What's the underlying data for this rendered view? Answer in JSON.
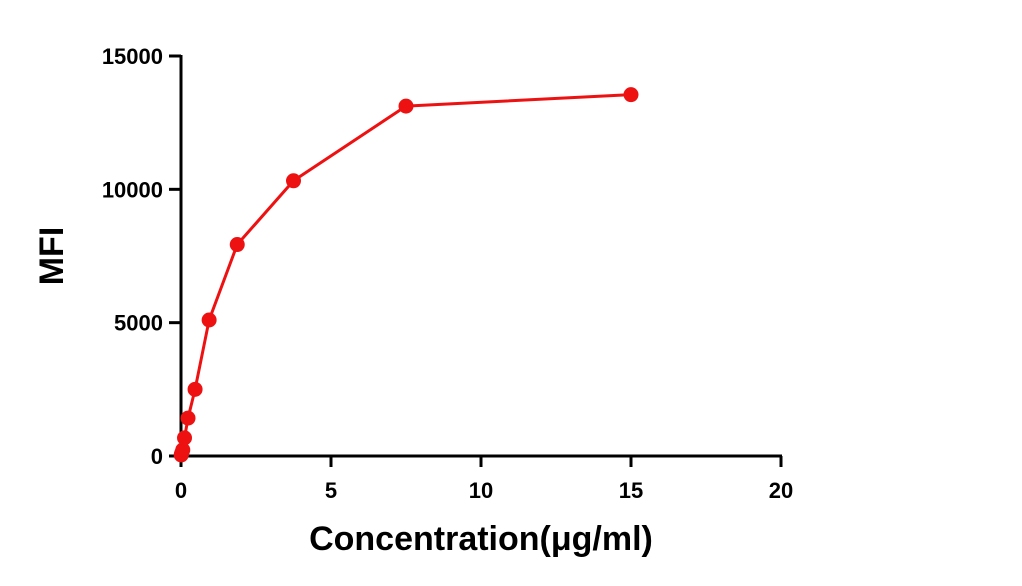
{
  "chart_data": {
    "type": "line",
    "title": "",
    "xlabel": "Concentration(μg/ml)",
    "ylabel": "MFI",
    "xlim": [
      0,
      20
    ],
    "ylim": [
      0,
      15000
    ],
    "xticks": [
      "0",
      "5",
      "10",
      "15",
      "20"
    ],
    "yticks": [
      "0",
      "5000",
      "10000",
      "15000"
    ],
    "grid": false,
    "series": [
      {
        "color": "#ee1111",
        "points": [
          {
            "x": 0.0073,
            "y": 40
          },
          {
            "x": 0.0146,
            "y": 70
          },
          {
            "x": 0.029,
            "y": 120
          },
          {
            "x": 0.059,
            "y": 230
          },
          {
            "x": 0.117,
            "y": 680
          },
          {
            "x": 0.234,
            "y": 1420
          },
          {
            "x": 0.469,
            "y": 2500
          },
          {
            "x": 0.9375,
            "y": 5100
          },
          {
            "x": 1.875,
            "y": 7930
          },
          {
            "x": 3.75,
            "y": 10320
          },
          {
            "x": 7.5,
            "y": 13120
          },
          {
            "x": 15,
            "y": 13550
          }
        ]
      }
    ]
  }
}
